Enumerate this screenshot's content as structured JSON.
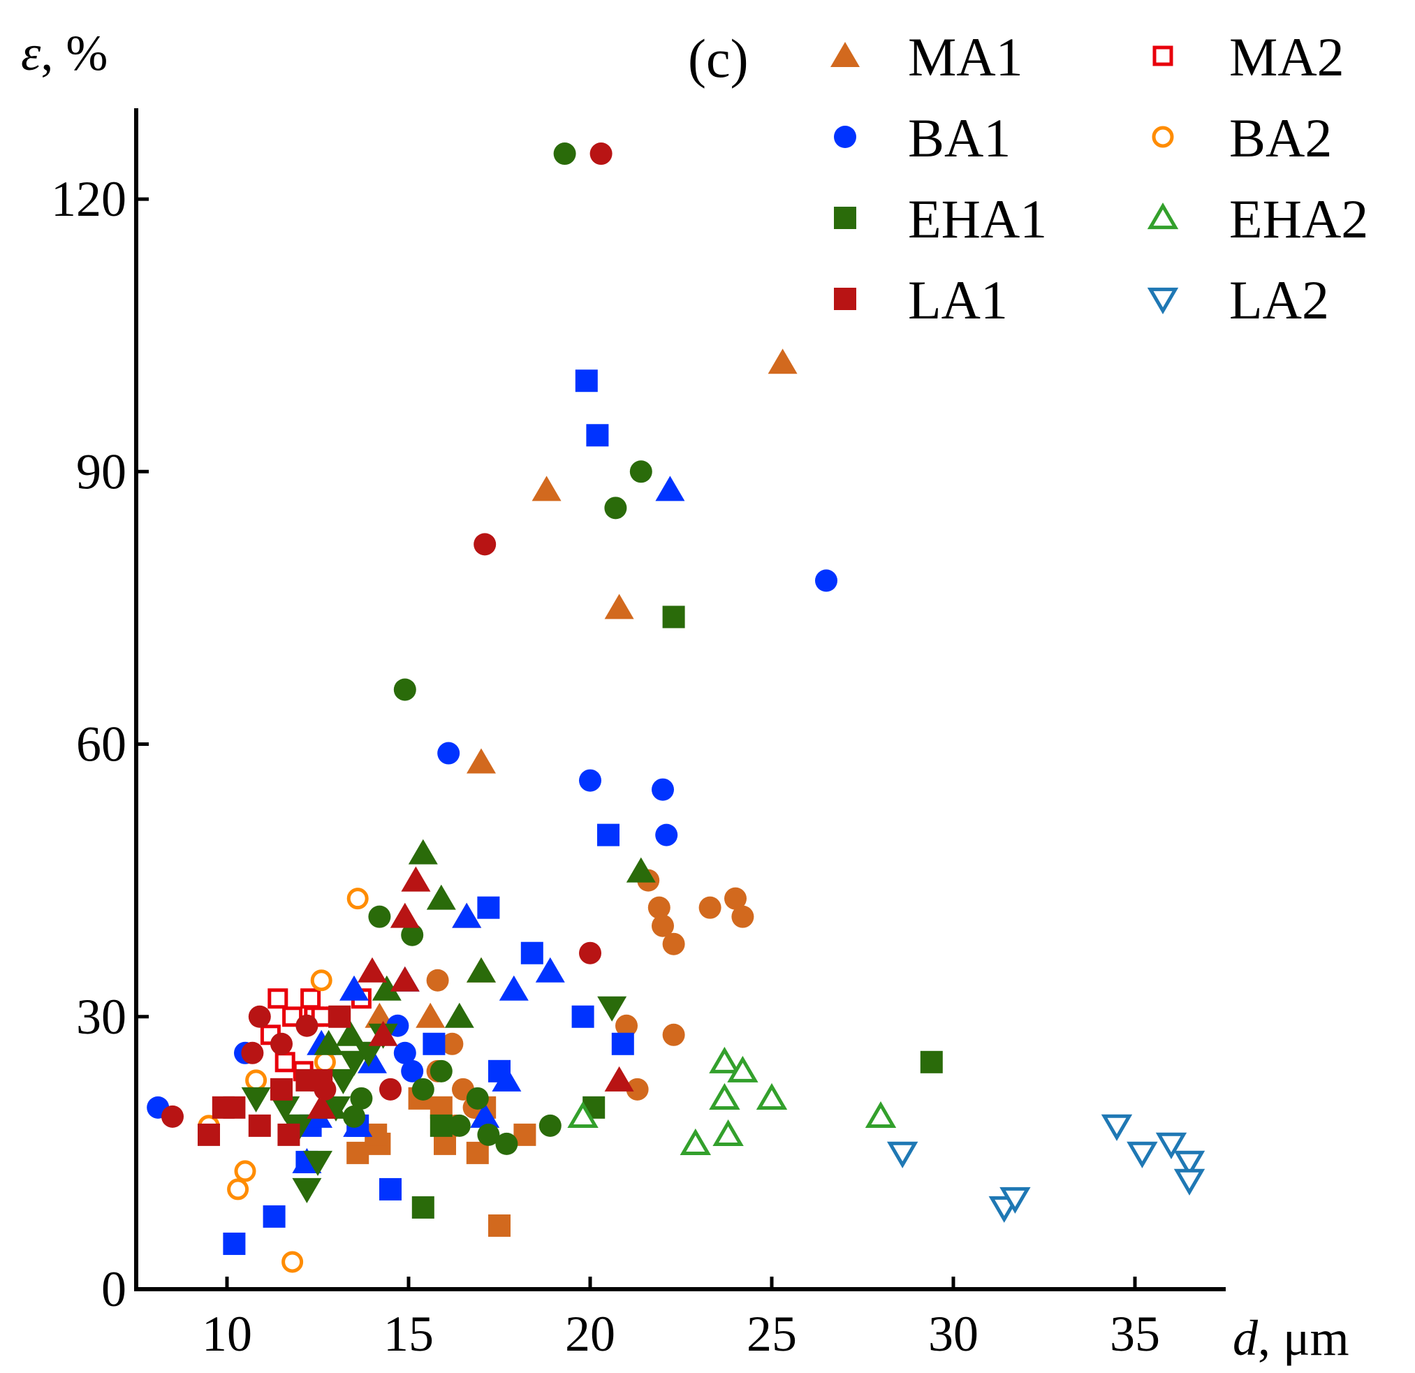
{
  "chart_data": {
    "type": "scatter",
    "panel_label": "(c)",
    "ylabel_var": "ε",
    "ylabel_unit": ", %",
    "xlabel_var": "d",
    "xlabel_unit": ", μm",
    "xlim": [
      7.5,
      37.5
    ],
    "ylim": [
      0,
      130
    ],
    "xticks": [
      10,
      15,
      20,
      25,
      30,
      35
    ],
    "yticks": [
      0,
      30,
      60,
      90,
      120
    ],
    "legend_position": "top-right",
    "series": [
      {
        "name": "MA1",
        "marker": "triangle-up",
        "filled": true,
        "color": "#d2691e",
        "points": [
          [
            25.3,
            102
          ],
          [
            18.8,
            88
          ],
          [
            20.8,
            75
          ],
          [
            17,
            58
          ],
          [
            16.6,
            41
          ],
          [
            17,
            35
          ],
          [
            15.6,
            30
          ],
          [
            14.2,
            30
          ]
        ]
      },
      {
        "name": "MA1",
        "marker": "circle",
        "filled": true,
        "color": "#d2691e",
        "points": [
          [
            21.6,
            45
          ],
          [
            21.9,
            42
          ],
          [
            22,
            40
          ],
          [
            22.3,
            38
          ],
          [
            23.3,
            42
          ],
          [
            24,
            43
          ],
          [
            24.2,
            41
          ],
          [
            21,
            29
          ],
          [
            22.3,
            28
          ],
          [
            21.3,
            22
          ],
          [
            15.8,
            34
          ],
          [
            16.2,
            27
          ],
          [
            15.8,
            24
          ],
          [
            16.5,
            22
          ],
          [
            16.8,
            20
          ],
          [
            16.3,
            18
          ]
        ]
      },
      {
        "name": "MA1",
        "marker": "square",
        "filled": true,
        "color": "#d2691e",
        "points": [
          [
            14.2,
            16
          ],
          [
            13.6,
            15
          ],
          [
            15.3,
            21
          ],
          [
            15.9,
            20
          ],
          [
            16,
            16
          ],
          [
            16.9,
            15
          ],
          [
            17.1,
            20
          ],
          [
            17.5,
            7
          ],
          [
            18.2,
            17
          ],
          [
            14.1,
            17
          ]
        ]
      },
      {
        "name": "MA2",
        "marker": "square",
        "filled": false,
        "color": "#e8000b",
        "points": [
          [
            11.4,
            32
          ],
          [
            11.2,
            28
          ],
          [
            11.6,
            25
          ],
          [
            11.8,
            30
          ],
          [
            12.1,
            24
          ],
          [
            12.3,
            32
          ],
          [
            12.4,
            30
          ],
          [
            13,
            30
          ],
          [
            13.7,
            32
          ],
          [
            12.6,
            30
          ]
        ]
      },
      {
        "name": "BA1",
        "marker": "circle",
        "filled": true,
        "color": "#0033ff",
        "points": [
          [
            8.1,
            20
          ],
          [
            10.5,
            26
          ],
          [
            14.9,
            26
          ],
          [
            14.7,
            29
          ],
          [
            15.1,
            24
          ],
          [
            16.1,
            59
          ],
          [
            20,
            56
          ],
          [
            22,
            55
          ],
          [
            22.1,
            50
          ],
          [
            26.5,
            78
          ]
        ]
      },
      {
        "name": "BA1",
        "marker": "square",
        "filled": true,
        "color": "#0033ff",
        "points": [
          [
            10.2,
            5
          ],
          [
            11.3,
            8
          ],
          [
            14.5,
            11
          ],
          [
            12.2,
            14
          ],
          [
            12.3,
            18
          ],
          [
            13.6,
            18
          ],
          [
            15.7,
            27
          ],
          [
            17.2,
            42
          ],
          [
            18.4,
            37
          ],
          [
            17.5,
            24
          ],
          [
            19.8,
            30
          ],
          [
            20.5,
            50
          ],
          [
            20.9,
            27
          ],
          [
            19.9,
            100
          ],
          [
            20.2,
            94
          ]
        ]
      },
      {
        "name": "BA1",
        "marker": "triangle-up",
        "filled": true,
        "color": "#0033ff",
        "points": [
          [
            22.2,
            88
          ],
          [
            16.6,
            41
          ],
          [
            17.9,
            33
          ],
          [
            18.9,
            35
          ],
          [
            17.7,
            23
          ],
          [
            17.1,
            19
          ],
          [
            14.9,
            34
          ],
          [
            13.5,
            33
          ],
          [
            14,
            25
          ],
          [
            12.5,
            19
          ],
          [
            13.6,
            18
          ],
          [
            12.6,
            27
          ],
          [
            12.2,
            14
          ]
        ]
      },
      {
        "name": "BA2",
        "marker": "circle",
        "filled": false,
        "color": "#ff8c00",
        "points": [
          [
            9.5,
            18
          ],
          [
            10.8,
            23
          ],
          [
            10.3,
            11
          ],
          [
            10.5,
            13
          ],
          [
            11.8,
            3
          ],
          [
            12.6,
            34
          ],
          [
            12.7,
            25
          ],
          [
            13.6,
            43
          ]
        ]
      },
      {
        "name": "EHA1",
        "marker": "square",
        "filled": true,
        "color": "#2a6b0a",
        "points": [
          [
            15.4,
            9
          ],
          [
            15.9,
            18
          ],
          [
            20.1,
            20
          ],
          [
            22.3,
            74
          ],
          [
            29.4,
            25
          ]
        ]
      },
      {
        "name": "EHA1",
        "marker": "circle",
        "filled": true,
        "color": "#2a6b0a",
        "points": [
          [
            19.3,
            125
          ],
          [
            21.4,
            90
          ],
          [
            20.7,
            86
          ],
          [
            14.9,
            66
          ],
          [
            14.2,
            41
          ],
          [
            15.1,
            39
          ],
          [
            13.7,
            21
          ],
          [
            13.5,
            19
          ],
          [
            15.4,
            22
          ],
          [
            15.9,
            24
          ],
          [
            16.4,
            18
          ],
          [
            16.9,
            21
          ],
          [
            17.2,
            17
          ],
          [
            17.7,
            16
          ],
          [
            18.9,
            18
          ]
        ]
      },
      {
        "name": "EHA1",
        "marker": "triangle-up",
        "filled": true,
        "color": "#2a6b0a",
        "points": [
          [
            15.4,
            48
          ],
          [
            15.9,
            43
          ],
          [
            17,
            35
          ],
          [
            16.4,
            30
          ],
          [
            14.4,
            33
          ],
          [
            13.4,
            28
          ],
          [
            21.4,
            46
          ],
          [
            12.8,
            27
          ],
          [
            12.9,
            20
          ]
        ]
      },
      {
        "name": "EHA1",
        "marker": "triangle-down",
        "filled": true,
        "color": "#2a6b0a",
        "points": [
          [
            10.8,
            21
          ],
          [
            11.6,
            20
          ],
          [
            12,
            18
          ],
          [
            12.2,
            11
          ],
          [
            12.5,
            14
          ],
          [
            13,
            20
          ],
          [
            13.5,
            25
          ],
          [
            13.9,
            26
          ],
          [
            14.3,
            28
          ],
          [
            20.6,
            31
          ],
          [
            13.2,
            23
          ],
          [
            11.9,
            18
          ]
        ]
      },
      {
        "name": "EHA2",
        "marker": "triangle-up",
        "filled": false,
        "color": "#33a02c",
        "points": [
          [
            19.8,
            19
          ],
          [
            22.9,
            16
          ],
          [
            23.7,
            25
          ],
          [
            23.8,
            17
          ],
          [
            23.7,
            21
          ],
          [
            24.2,
            24
          ],
          [
            25,
            21
          ],
          [
            28,
            19
          ]
        ]
      },
      {
        "name": "LA1",
        "marker": "square",
        "filled": true,
        "color": "#b81414",
        "points": [
          [
            9.5,
            17
          ],
          [
            9.9,
            20
          ],
          [
            10.2,
            20
          ],
          [
            10.9,
            18
          ],
          [
            11.7,
            17
          ],
          [
            11.5,
            22
          ],
          [
            12.6,
            23
          ],
          [
            13.1,
            30
          ],
          [
            12.2,
            23
          ]
        ]
      },
      {
        "name": "LA1",
        "marker": "circle",
        "filled": true,
        "color": "#b81414",
        "points": [
          [
            8.5,
            19
          ],
          [
            10.7,
            26
          ],
          [
            10.9,
            30
          ],
          [
            11.5,
            27
          ],
          [
            12.2,
            29
          ],
          [
            12.7,
            22
          ],
          [
            14.5,
            22
          ],
          [
            17.1,
            82
          ],
          [
            20.3,
            125
          ],
          [
            20,
            37
          ]
        ]
      },
      {
        "name": "LA1",
        "marker": "triangle-up",
        "filled": true,
        "color": "#b81414",
        "points": [
          [
            15.2,
            45
          ],
          [
            14.9,
            41
          ],
          [
            14.9,
            34
          ],
          [
            14,
            35
          ],
          [
            14.3,
            28
          ],
          [
            20.8,
            23
          ],
          [
            12.6,
            20
          ]
        ]
      },
      {
        "name": "LA2",
        "marker": "triangle-down",
        "filled": false,
        "color": "#1f78b4",
        "points": [
          [
            28.6,
            15
          ],
          [
            31.4,
            9
          ],
          [
            31.7,
            10
          ],
          [
            34.5,
            18
          ],
          [
            35.2,
            15
          ],
          [
            36,
            16
          ],
          [
            36.5,
            14
          ],
          [
            36.5,
            12
          ]
        ]
      }
    ],
    "legend": [
      {
        "label": "MA1",
        "marker": "triangle-up",
        "filled": true,
        "color": "#d2691e"
      },
      {
        "label": "MA2",
        "marker": "square",
        "filled": false,
        "color": "#e8000b"
      },
      {
        "label": "BA1",
        "marker": "circle",
        "filled": true,
        "color": "#0033ff"
      },
      {
        "label": "BA2",
        "marker": "circle",
        "filled": false,
        "color": "#ff8c00"
      },
      {
        "label": "EHA1",
        "marker": "square",
        "filled": true,
        "color": "#2a6b0a"
      },
      {
        "label": "EHA2",
        "marker": "triangle-up",
        "filled": false,
        "color": "#33a02c"
      },
      {
        "label": "LA1",
        "marker": "square",
        "filled": true,
        "color": "#b81414"
      },
      {
        "label": "LA2",
        "marker": "triangle-down",
        "filled": false,
        "color": "#1f78b4"
      }
    ]
  }
}
